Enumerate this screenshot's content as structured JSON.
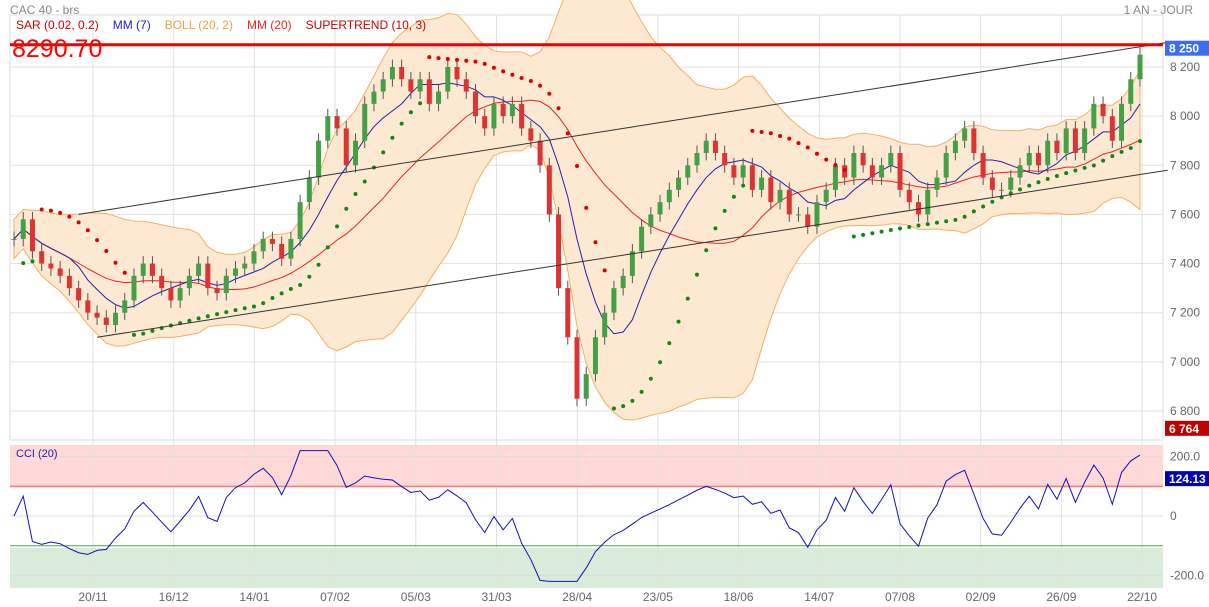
{
  "header": {
    "title": "CAC 40 - brs",
    "period": "1 AN - JOUR",
    "last_price": "8290.70"
  },
  "legend": [
    {
      "label": "SAR (0.02, 0.2)",
      "color": "#cc0000"
    },
    {
      "label": "MM (7)",
      "color": "#2222cc"
    },
    {
      "label": "BOLL (20, 2)",
      "color": "#f0a040"
    },
    {
      "label": "MM (20)",
      "color": "#ff2222"
    },
    {
      "label": "SUPERTREND (10, 3)",
      "color": "#cc0000"
    }
  ],
  "cci_label": "CCI (20)",
  "chart_data": [
    {
      "type": "candlestick",
      "title": "CAC 40 - brs",
      "x_ticks": [
        "20/11",
        "16/12",
        "14/01",
        "07/02",
        "05/03",
        "31/03",
        "28/04",
        "23/05",
        "18/06",
        "14/07",
        "07/08",
        "02/09",
        "26/09",
        "22/10"
      ],
      "y_ticks": [
        "6 800",
        "7 000",
        "7 200",
        "7 400",
        "7 600",
        "7 800",
        "8 000",
        "8 200"
      ],
      "ylim": [
        6700,
        8380
      ],
      "closes": [
        7500,
        7580,
        7450,
        7400,
        7380,
        7350,
        7300,
        7250,
        7200,
        7180,
        7150,
        7200,
        7250,
        7350,
        7400,
        7350,
        7300,
        7250,
        7300,
        7350,
        7400,
        7300,
        7280,
        7350,
        7380,
        7400,
        7450,
        7500,
        7480,
        7420,
        7500,
        7650,
        7750,
        7900,
        8000,
        7950,
        7800,
        7900,
        8050,
        8100,
        8150,
        8200,
        8150,
        8100,
        8150,
        8050,
        8100,
        8200,
        8150,
        8100,
        8000,
        7950,
        8050,
        8000,
        8050,
        7950,
        7900,
        7800,
        7600,
        7300,
        7100,
        6850,
        6950,
        7100,
        7200,
        7300,
        7350,
        7450,
        7550,
        7600,
        7650,
        7700,
        7750,
        7800,
        7850,
        7900,
        7850,
        7800,
        7750,
        7800,
        7700,
        7750,
        7650,
        7700,
        7600,
        7600,
        7550,
        7650,
        7700,
        7800,
        7750,
        7850,
        7800,
        7750,
        7800,
        7850,
        7700,
        7650,
        7600,
        7700,
        7750,
        7850,
        7900,
        7950,
        7850,
        7750,
        7700,
        7700,
        7750,
        7800,
        7850,
        7800,
        7900,
        7850,
        7950,
        7850,
        7950,
        8050,
        8000,
        7900,
        8050,
        8150,
        8250
      ],
      "resistance_level": 8290.7,
      "trendlines": [
        {
          "from": [
            7,
            7600
          ],
          "to": [
            125,
            8300
          ]
        },
        {
          "from": [
            9,
            7100
          ],
          "to": [
            125,
            7780
          ]
        }
      ],
      "price_badges": {
        "current": "8 250",
        "low": "6 764"
      },
      "colors": {
        "up": "#44a044",
        "down": "#dd3333",
        "boll_fill": "#fde9d2",
        "boll_line": "#f5b060",
        "mm7": "#2222aa",
        "mm20": "#ee2222",
        "resistance": "#ee0000",
        "badge_current": "#3a6df0",
        "badge_low": "#c00000"
      }
    },
    {
      "type": "line",
      "title": "CCI (20)",
      "y_ticks": [
        "200.0",
        "0",
        "-200.0"
      ],
      "ylim": [
        -240,
        240
      ],
      "levels": [
        100,
        -100
      ],
      "last_value": "124.13",
      "color": "#1111bb"
    }
  ]
}
